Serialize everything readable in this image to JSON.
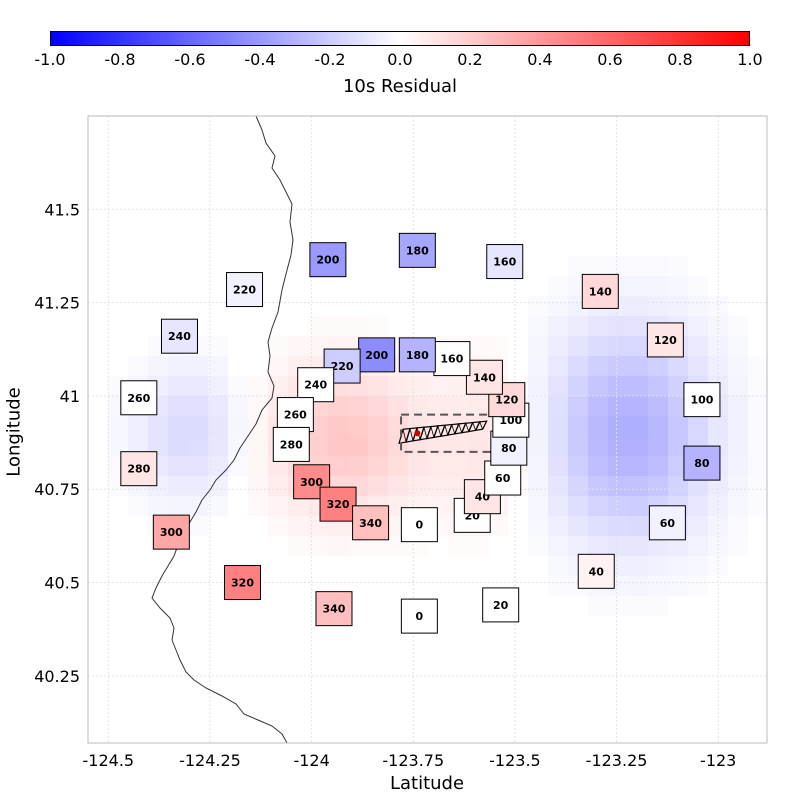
{
  "colorbar": {
    "title": "10s Residual",
    "min": -1.0,
    "max": 1.0,
    "ticks": [
      "-1.0",
      "-0.8",
      "-0.6",
      "-0.4",
      "-0.2",
      "0.0",
      "0.2",
      "0.4",
      "0.6",
      "0.8",
      "1.0"
    ],
    "colors": {
      "low": "#0000ff",
      "mid": "#ffffff",
      "high": "#ff0000"
    }
  },
  "axes": {
    "xlabel": "Latitude",
    "ylabel": "Longitude",
    "xlim": [
      -124.55,
      -122.88
    ],
    "ylim": [
      40.07,
      41.75
    ],
    "xticks": [
      -124.5,
      -124.25,
      -124.0,
      -123.75,
      -123.5,
      -123.25,
      -123.0
    ],
    "xtick_labels": [
      "-124.5",
      "-124.25",
      "-124",
      "-123.75",
      "-123.5",
      "-123.25",
      "-123"
    ],
    "yticks": [
      40.25,
      40.5,
      40.75,
      41.0,
      41.25,
      41.5
    ],
    "ytick_labels": [
      "40.25",
      "40.5",
      "40.75",
      "41",
      "41.25",
      "41.5"
    ]
  },
  "chart_data": {
    "type": "heatmap",
    "azimuth_labels_inner": [
      {
        "label": "0",
        "lon": -123.735,
        "lat": 40.655,
        "v": 0.0
      },
      {
        "label": "20",
        "lon": -123.605,
        "lat": 40.68,
        "v": 0.0
      },
      {
        "label": "40",
        "lon": -123.58,
        "lat": 40.73,
        "v": 0.1
      },
      {
        "label": "60",
        "lon": -123.53,
        "lat": 40.78,
        "v": 0.0
      },
      {
        "label": "80",
        "lon": -123.515,
        "lat": 40.86,
        "v": -0.05
      },
      {
        "label": "100",
        "lon": -123.51,
        "lat": 40.935,
        "v": 0.0
      },
      {
        "label": "120",
        "lon": -123.52,
        "lat": 40.99,
        "v": 0.15
      },
      {
        "label": "140",
        "lon": -123.575,
        "lat": 41.05,
        "v": 0.1
      },
      {
        "label": "160",
        "lon": -123.655,
        "lat": 41.1,
        "v": 0.0
      },
      {
        "label": "180",
        "lon": -123.74,
        "lat": 41.11,
        "v": -0.3
      },
      {
        "label": "200",
        "lon": -123.84,
        "lat": 41.11,
        "v": -0.45
      },
      {
        "label": "220",
        "lon": -123.925,
        "lat": 41.08,
        "v": -0.2
      },
      {
        "label": "240",
        "lon": -123.99,
        "lat": 41.03,
        "v": 0.0
      },
      {
        "label": "260",
        "lon": -124.04,
        "lat": 40.95,
        "v": 0.0
      },
      {
        "label": "280",
        "lon": -124.05,
        "lat": 40.87,
        "v": 0.0
      },
      {
        "label": "300",
        "lon": -124.0,
        "lat": 40.77,
        "v": 0.45
      },
      {
        "label": "320",
        "lon": -123.935,
        "lat": 40.71,
        "v": 0.5
      },
      {
        "label": "340",
        "lon": -123.855,
        "lat": 40.66,
        "v": 0.25
      }
    ],
    "azimuth_labels_outer": [
      {
        "label": "0",
        "lon": -123.735,
        "lat": 40.41,
        "v": 0.0
      },
      {
        "label": "20",
        "lon": -123.535,
        "lat": 40.44,
        "v": 0.0
      },
      {
        "label": "40",
        "lon": -123.3,
        "lat": 40.53,
        "v": 0.05
      },
      {
        "label": "60",
        "lon": -123.125,
        "lat": 40.66,
        "v": -0.05
      },
      {
        "label": "80",
        "lon": -123.04,
        "lat": 40.82,
        "v": -0.3
      },
      {
        "label": "100",
        "lon": -123.04,
        "lat": 40.99,
        "v": 0.0
      },
      {
        "label": "120",
        "lon": -123.13,
        "lat": 41.15,
        "v": 0.1
      },
      {
        "label": "140",
        "lon": -123.29,
        "lat": 41.28,
        "v": 0.15
      },
      {
        "label": "160",
        "lon": -123.525,
        "lat": 41.36,
        "v": -0.1
      },
      {
        "label": "180",
        "lon": -123.74,
        "lat": 41.39,
        "v": -0.35
      },
      {
        "label": "200",
        "lon": -123.96,
        "lat": 41.365,
        "v": -0.4
      },
      {
        "label": "220",
        "lon": -124.165,
        "lat": 41.285,
        "v": -0.05
      },
      {
        "label": "240",
        "lon": -124.325,
        "lat": 41.16,
        "v": -0.1
      },
      {
        "label": "260",
        "lon": -124.425,
        "lat": 40.995,
        "v": 0.0
      },
      {
        "label": "280",
        "lon": -124.425,
        "lat": 40.805,
        "v": 0.1
      },
      {
        "label": "300",
        "lon": -124.345,
        "lat": 40.635,
        "v": 0.35
      },
      {
        "label": "320",
        "lon": -124.17,
        "lat": 40.5,
        "v": 0.5
      },
      {
        "label": "340",
        "lon": -123.945,
        "lat": 40.43,
        "v": 0.25
      }
    ],
    "residual_blobs": [
      {
        "lon": -123.92,
        "lat": 40.88,
        "rlon": 0.2,
        "rlat": 0.2,
        "v": 0.22
      },
      {
        "lon": -123.56,
        "lat": 40.88,
        "rlon": 0.13,
        "rlat": 0.22,
        "v": 0.1
      },
      {
        "lon": -123.22,
        "lat": 40.9,
        "rlon": 0.2,
        "rlat": 0.28,
        "v": -0.32
      },
      {
        "lon": -124.3,
        "lat": 40.9,
        "rlon": 0.14,
        "rlat": 0.18,
        "v": -0.15
      }
    ],
    "source_box": {
      "lon": [
        -123.78,
        -123.54
      ],
      "lat": [
        40.85,
        40.95
      ]
    },
    "epicenter": {
      "lon": -123.74,
      "lat": 40.9
    }
  }
}
